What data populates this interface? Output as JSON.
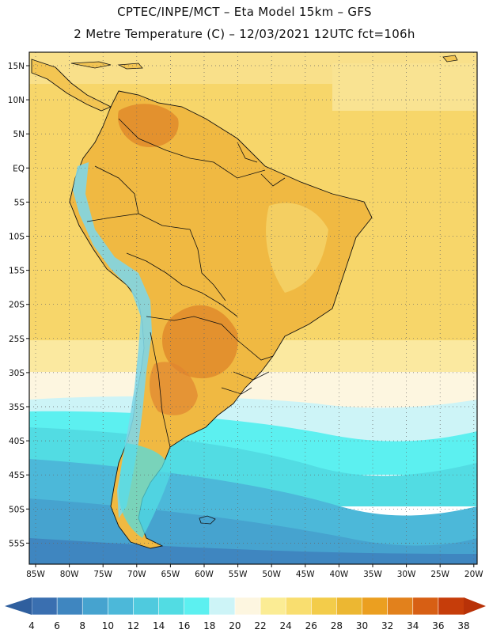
{
  "title": {
    "line1": "CPTEC/INPE/MCT –  Eta Model 15km – GFS",
    "line2": "2 Metre Temperature (C) – 12/03/2021 12UTC fct=106h"
  },
  "map": {
    "lat_labels": [
      "15N",
      "10N",
      "5N",
      "EQ",
      "5S",
      "10S",
      "15S",
      "20S",
      "25S",
      "30S",
      "35S",
      "40S",
      "45S",
      "50S",
      "55S"
    ],
    "lon_labels": [
      "85W",
      "80W",
      "75W",
      "70W",
      "65W",
      "60W",
      "55W",
      "50W",
      "45W",
      "40W",
      "35W",
      "30W",
      "25W",
      "20W"
    ],
    "ocean_bands": [
      {
        "lat": "15N to 33S",
        "temp_range": "24-28"
      },
      {
        "lat": "33S to 38S",
        "temp_range": "20-22"
      },
      {
        "lat": "38S to 45S",
        "temp_range": "14-18"
      },
      {
        "lat": "45S to 55S",
        "temp_range": "6-12"
      }
    ],
    "hot_spots": [
      "Venezuela/Colombia 30-32",
      "Paraguay/N Argentina 30-32"
    ]
  },
  "colorbar": {
    "ticks": [
      "4",
      "6",
      "8",
      "10",
      "12",
      "14",
      "16",
      "18",
      "20",
      "22",
      "24",
      "26",
      "28",
      "30",
      "32",
      "34",
      "36",
      "38"
    ],
    "colors": [
      "#3a6fb0",
      "#3f86c0",
      "#46a3cf",
      "#4cb8d9",
      "#4fcade",
      "#52dce3",
      "#5cf0f0",
      "#cdf4f7",
      "#fdf6e0",
      "#fbec94",
      "#f9de6f",
      "#f3cc4a",
      "#ecb732",
      "#eb9f20",
      "#e2811c",
      "#d75f14",
      "#c63d0a"
    ],
    "low_arrow_color": "#2f5f9e",
    "high_arrow_color": "#b83208"
  },
  "palette": {
    "ocean_warm": "#f7d66a",
    "land_base": "#f0b942",
    "land_hot": "#e08a2a",
    "andes_cold": "#7fd6e6",
    "frame": "#111111"
  }
}
